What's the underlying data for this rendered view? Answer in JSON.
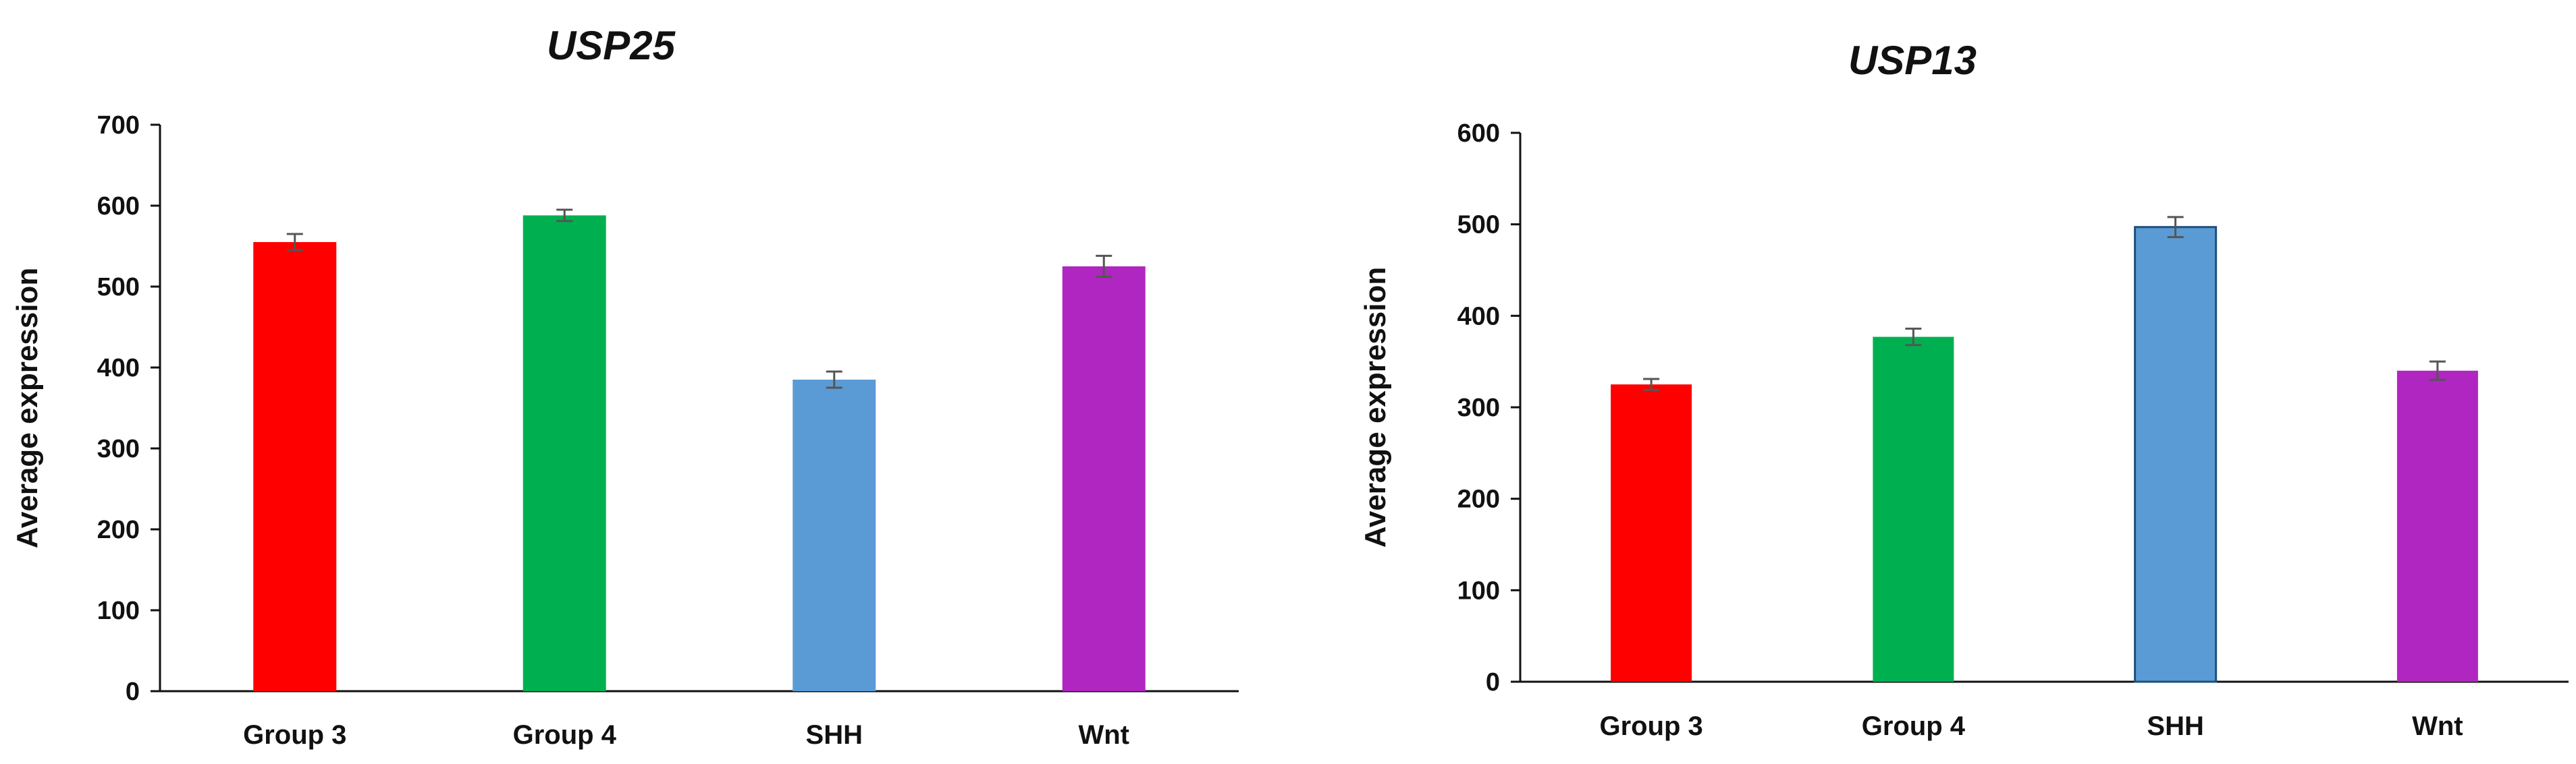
{
  "chart_data": [
    {
      "type": "bar",
      "title": "USP25",
      "ylabel": "Average expression",
      "xlabel": "",
      "ylim": [
        0,
        700
      ],
      "yticks": [
        0,
        100,
        200,
        300,
        400,
        500,
        600,
        700
      ],
      "categories": [
        "Group 3",
        "Group 4",
        "SHH",
        "Wnt"
      ],
      "values": [
        555,
        588,
        385,
        525
      ],
      "errors": [
        10,
        7,
        10,
        13
      ],
      "colors": [
        "#ff0000",
        "#00b050",
        "#5b9bd5",
        "#b026c0"
      ],
      "grid": false
    },
    {
      "type": "bar",
      "title": "USP13",
      "ylabel": "Average expression",
      "xlabel": "",
      "ylim": [
        0,
        600
      ],
      "yticks": [
        0,
        100,
        200,
        300,
        400,
        500,
        600
      ],
      "categories": [
        "Group 3",
        "Group 4",
        "SHH",
        "Wnt"
      ],
      "values": [
        325,
        377,
        497,
        340
      ],
      "errors": [
        6,
        9,
        11,
        10
      ],
      "colors": [
        "#ff0000",
        "#00b050",
        "#5b9bd5",
        "#b026c0"
      ],
      "grid": false
    }
  ]
}
